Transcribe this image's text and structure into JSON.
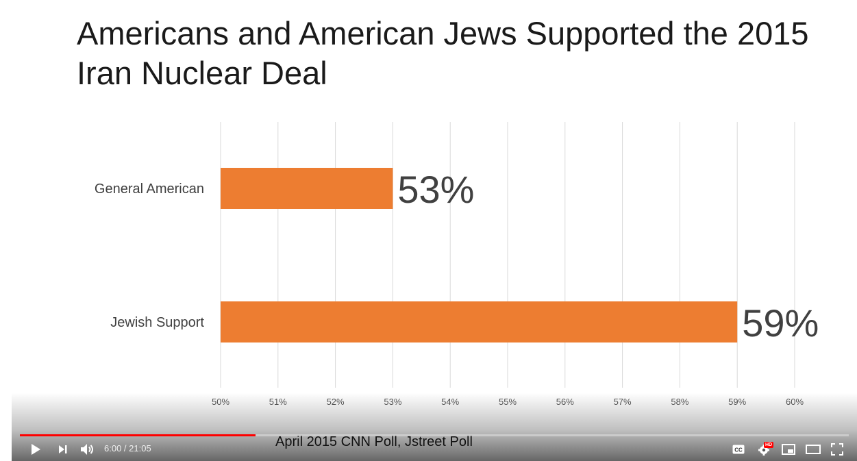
{
  "slide": {
    "title": "Americans and American Jews Supported the 2015 Iran Nuclear Deal"
  },
  "chart_data": {
    "type": "bar",
    "orientation": "horizontal",
    "title": "",
    "categories": [
      "General American",
      "Jewish Support"
    ],
    "values": [
      53,
      59
    ],
    "value_labels": [
      "53%",
      "59%"
    ],
    "xlim": [
      50,
      60
    ],
    "x_ticks": [
      "50%",
      "51%",
      "52%",
      "53%",
      "54%",
      "55%",
      "56%",
      "57%",
      "58%",
      "59%",
      "60%"
    ],
    "grid": true,
    "bar_color": "#ED7D31",
    "grid_color": "#D9D9D9",
    "legend": "none"
  },
  "caption": "April 2015 CNN Poll, Jstreet Poll",
  "player": {
    "current_time": "6:00",
    "separator": " / ",
    "duration": "21:05",
    "progress": 0.2846,
    "progress_color": "#FF0000",
    "hd_badge": "HD",
    "icons": [
      "play-icon",
      "next-icon",
      "volume-icon",
      "captions-icon",
      "settings-icon",
      "miniplayer-icon",
      "theater-icon",
      "fullscreen-icon"
    ]
  }
}
